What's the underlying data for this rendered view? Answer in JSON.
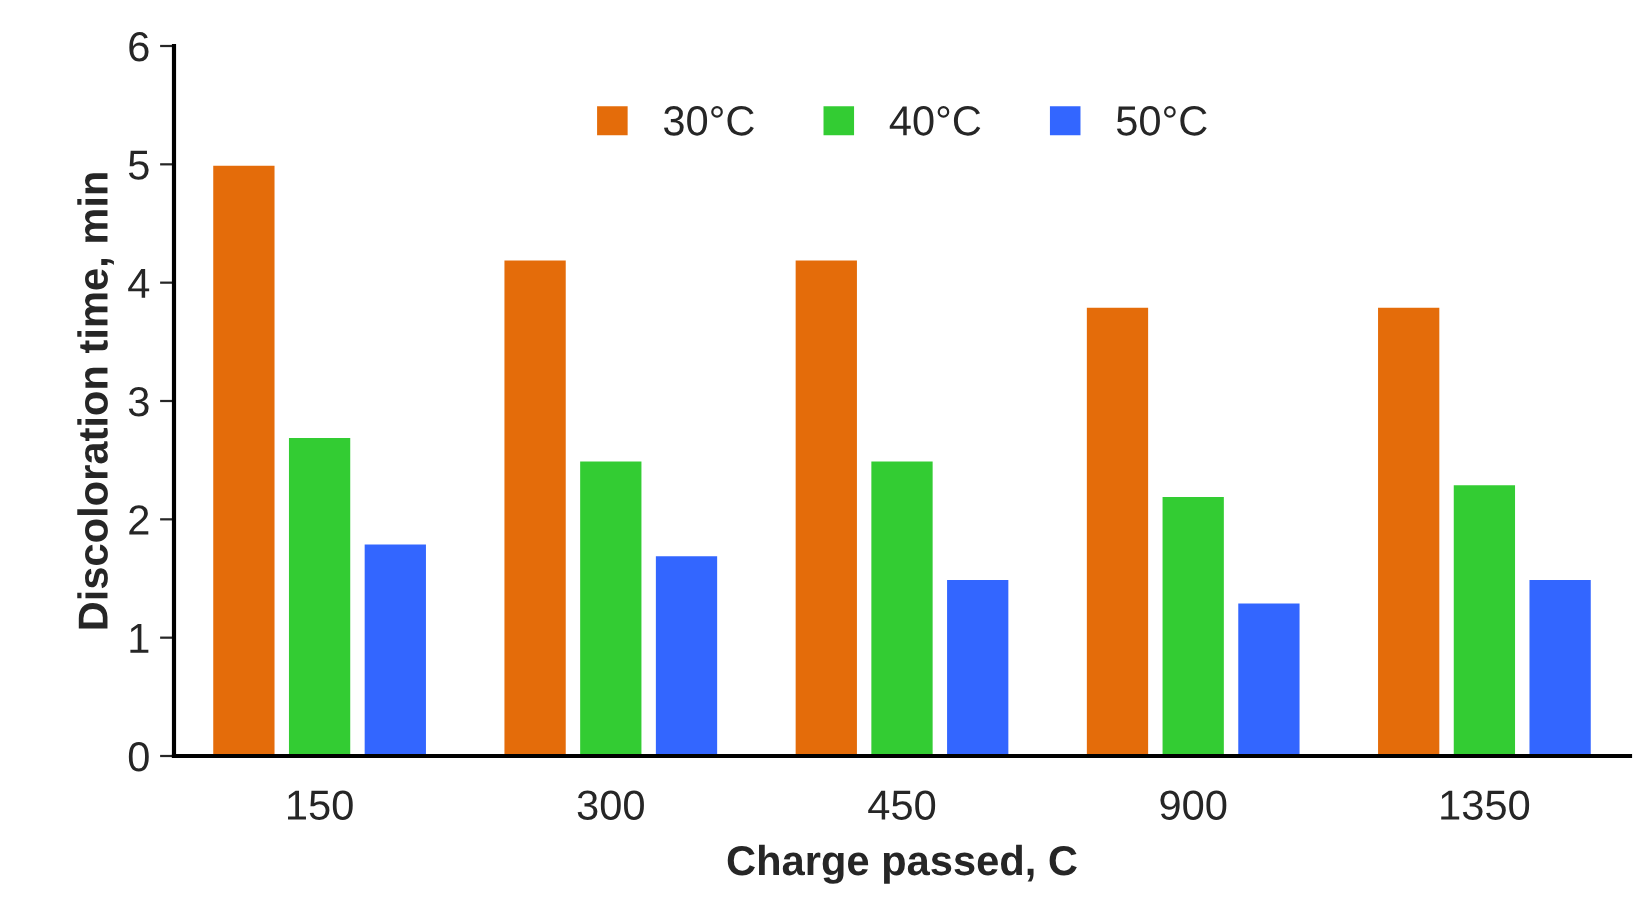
{
  "chart_data": {
    "type": "bar",
    "xlabel": "Charge passed, C",
    "ylabel": "Discoloration time, min",
    "categories": [
      "150",
      "300",
      "450",
      "900",
      "1350"
    ],
    "series": [
      {
        "name": "30°C",
        "color": "#e46c0a",
        "values": [
          5.0,
          4.2,
          4.2,
          3.8,
          3.8
        ]
      },
      {
        "name": "40°C",
        "color": "#33cc33",
        "values": [
          2.7,
          2.5,
          2.5,
          2.2,
          2.3
        ]
      },
      {
        "name": "50°C",
        "color": "#3366ff",
        "values": [
          1.8,
          1.7,
          1.5,
          1.3,
          1.5
        ]
      }
    ],
    "ylim": [
      0,
      6
    ],
    "yticks": [
      0,
      1,
      2,
      3,
      4,
      5,
      6
    ],
    "grid": false,
    "legend": "top"
  }
}
